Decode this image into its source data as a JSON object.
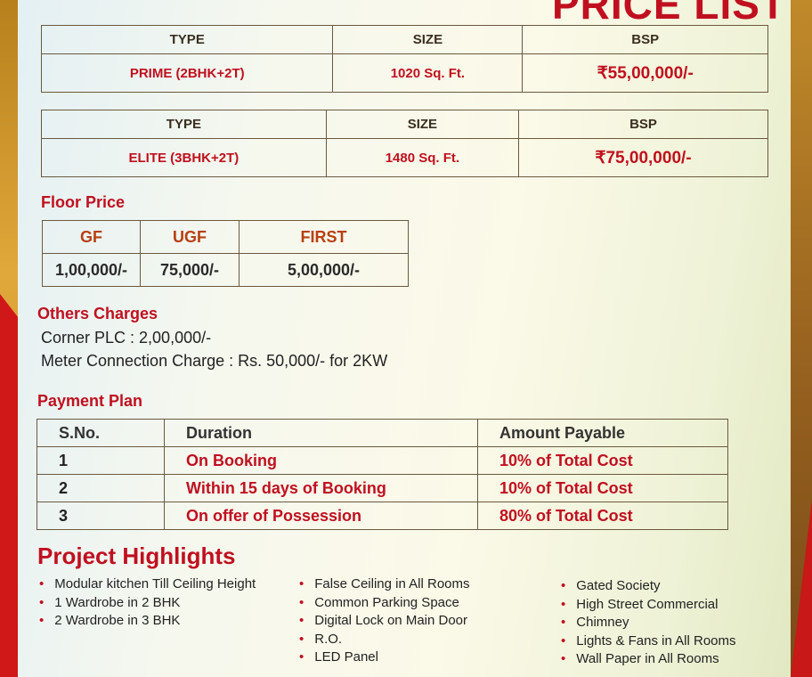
{
  "title": "PRICE LIST",
  "unit_tables": [
    {
      "headers": [
        "TYPE",
        "SIZE",
        "BSP"
      ],
      "row": [
        "PRIME (2BHK+2T)",
        "1020 Sq. Ft.",
        "₹55,00,000/-"
      ]
    },
    {
      "headers": [
        "TYPE",
        "SIZE",
        "BSP"
      ],
      "row": [
        "ELITE (3BHK+2T)",
        "1480 Sq. Ft.",
        "₹75,00,000/-"
      ]
    }
  ],
  "floor_price": {
    "heading": "Floor Price",
    "headers": [
      "GF",
      "UGF",
      "FIRST"
    ],
    "values": [
      "1,00,000/-",
      "75,000/-",
      "5,00,000/-"
    ]
  },
  "others_charges": {
    "heading": "Others Charges",
    "lines": [
      "Corner PLC : 2,00,000/-",
      "Meter Connection Charge :  Rs. 50,000/- for 2KW"
    ]
  },
  "payment_plan": {
    "heading": "Payment Plan",
    "headers": [
      "S.No.",
      "Duration",
      "Amount Payable"
    ],
    "rows": [
      [
        "1",
        "On Booking",
        "10% of Total Cost"
      ],
      [
        "2",
        "Within 15 days of Booking",
        "10% of Total Cost"
      ],
      [
        "3",
        "On offer of Possession",
        "80% of Total Cost"
      ]
    ]
  },
  "highlights": {
    "heading": "Project Highlights",
    "col1": [
      "Modular kitchen Till Ceiling Height",
      "1 Wardrobe in 2 BHK",
      "2 Wardrobe in 3 BHK"
    ],
    "col2": [
      "False Ceiling in All Rooms",
      "Common Parking Space",
      "Digital Lock on Main Door",
      "R.O.",
      "LED Panel"
    ],
    "col3": [
      "Gated Society",
      "High Street Commercial",
      "Chimney",
      "Lights & Fans in All Rooms",
      "Wall Paper in All Rooms"
    ]
  },
  "colors": {
    "accent_red": "#c01020",
    "frame_gold": "#c8922a"
  }
}
